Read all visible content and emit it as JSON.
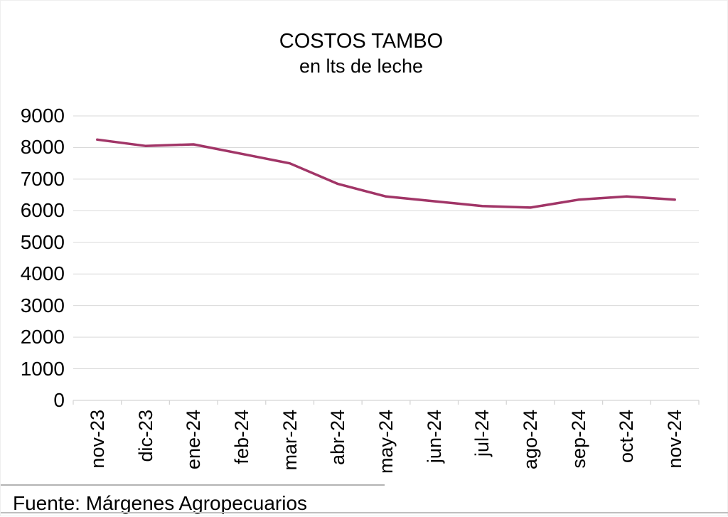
{
  "chart": {
    "title_line1": "COSTOS TAMBO",
    "title_line2": "en lts de leche"
  },
  "footer": {
    "source": "Fuente: Márgenes Agropecuarios"
  },
  "chart_data": {
    "type": "line",
    "title": "COSTOS TAMBO",
    "subtitle": "en lts de leche",
    "categories": [
      "nov-23",
      "dic-23",
      "ene-24",
      "feb-24",
      "mar-24",
      "abr-24",
      "may-24",
      "jun-24",
      "jul-24",
      "ago-24",
      "sep-24",
      "oct-24",
      "nov-24"
    ],
    "values": [
      8250,
      8050,
      8100,
      7800,
      7500,
      6850,
      6450,
      6300,
      6150,
      6100,
      6350,
      6450,
      6350
    ],
    "xlabel": "",
    "ylabel": "",
    "ylim": [
      0,
      9000
    ],
    "ytick_step": 1000,
    "grid": true,
    "legend": "none",
    "line_color": "#A13567",
    "gridline_color": "#D9D9D9",
    "axis_color": "#D5D5D5",
    "text_color": "#000000"
  }
}
